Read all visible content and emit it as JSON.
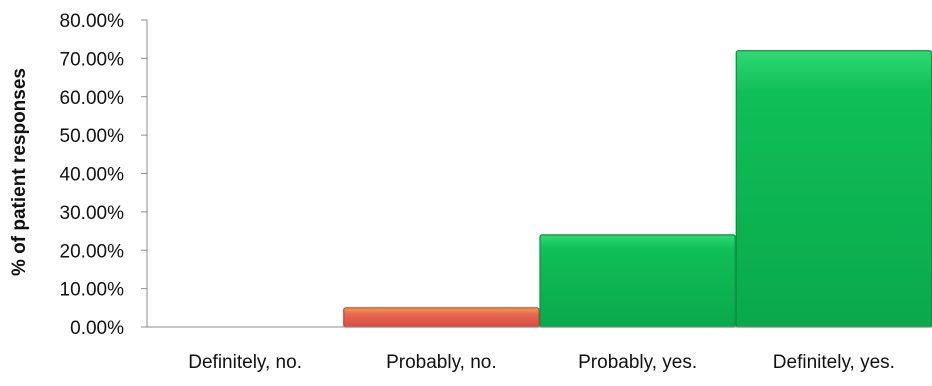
{
  "chart_data": {
    "type": "bar",
    "title": "",
    "xlabel": "",
    "ylabel": "% of patient responses",
    "categories": [
      "Definitely, no.",
      "Probably, no.",
      "Probably, yes.",
      "Definitely, yes."
    ],
    "values": [
      0.0,
      5.0,
      24.0,
      72.0
    ],
    "ylim": [
      0,
      80
    ],
    "yticks": [
      "0.00%",
      "10.00%",
      "20.00%",
      "30.00%",
      "40.00%",
      "50.00%",
      "60.00%",
      "70.00%",
      "80.00%"
    ],
    "bar_colors": [
      "#e05a4f",
      "#e05a4f",
      "#0fbf57",
      "#0fbf57"
    ],
    "grid": false,
    "legend": "none"
  }
}
